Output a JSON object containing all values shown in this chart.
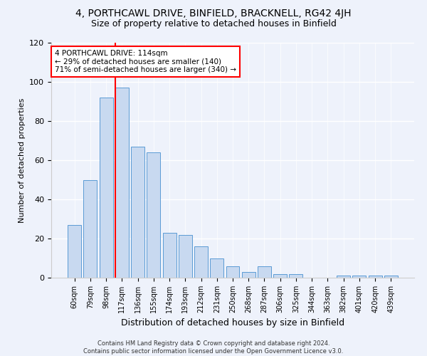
{
  "title": "4, PORTHCAWL DRIVE, BINFIELD, BRACKNELL, RG42 4JH",
  "subtitle": "Size of property relative to detached houses in Binfield",
  "xlabel": "Distribution of detached houses by size in Binfield",
  "ylabel": "Number of detached properties",
  "categories": [
    "60sqm",
    "79sqm",
    "98sqm",
    "117sqm",
    "136sqm",
    "155sqm",
    "174sqm",
    "193sqm",
    "212sqm",
    "231sqm",
    "250sqm",
    "268sqm",
    "287sqm",
    "306sqm",
    "325sqm",
    "344sqm",
    "363sqm",
    "382sqm",
    "401sqm",
    "420sqm",
    "439sqm"
  ],
  "bar_heights": [
    27,
    50,
    92,
    97,
    67,
    64,
    23,
    22,
    16,
    10,
    6,
    3,
    6,
    2,
    2,
    0,
    0,
    1,
    1,
    1,
    1
  ],
  "bar_color": "#c8d9f0",
  "bar_edge_color": "#5b9bd5",
  "vline_bar_index": 3,
  "vline_color": "red",
  "annotation_line1": "4 PORTHCAWL DRIVE: 114sqm",
  "annotation_line2": "← 29% of detached houses are smaller (140)",
  "annotation_line3": "71% of semi-detached houses are larger (340) →",
  "ylim": [
    0,
    120
  ],
  "yticks": [
    0,
    20,
    40,
    60,
    80,
    100,
    120
  ],
  "footer": "Contains HM Land Registry data © Crown copyright and database right 2024.\nContains public sector information licensed under the Open Government Licence v3.0.",
  "bg_color": "#eef2fb",
  "plot_bg_color": "#eef2fb",
  "title_fontsize": 10,
  "subtitle_fontsize": 9
}
